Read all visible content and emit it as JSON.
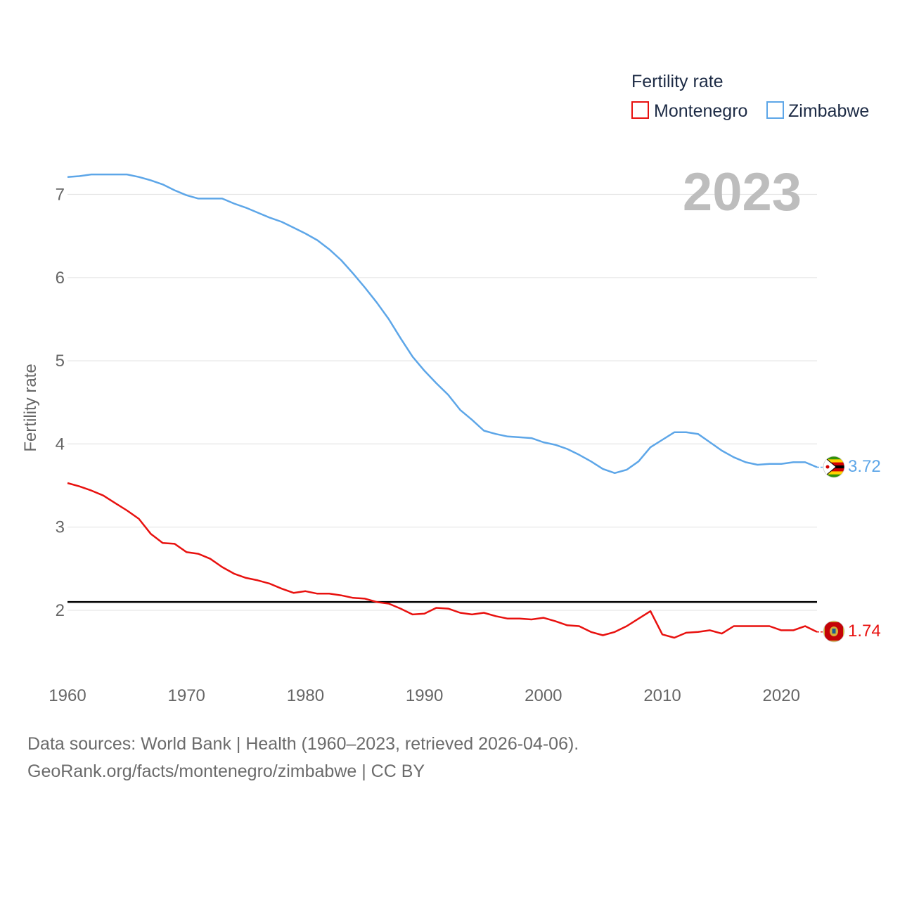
{
  "chart_data": {
    "type": "line",
    "xlabel": "",
    "ylabel": "Fertility rate",
    "xlim": [
      1960,
      2023
    ],
    "ylim": [
      1.3,
      7.4
    ],
    "x_ticks": [
      1960,
      1970,
      1980,
      1990,
      2000,
      2010,
      2020
    ],
    "y_ticks": [
      2,
      3,
      4,
      5,
      6,
      7
    ],
    "grid": true,
    "year_label": "2023",
    "legend": {
      "title": "Fertility rate",
      "position": "top-right"
    },
    "reference_line": {
      "y": 2.1,
      "color": "#000000"
    },
    "x": [
      1960,
      1961,
      1962,
      1963,
      1964,
      1965,
      1966,
      1967,
      1968,
      1969,
      1970,
      1971,
      1972,
      1973,
      1974,
      1975,
      1976,
      1977,
      1978,
      1979,
      1980,
      1981,
      1982,
      1983,
      1984,
      1985,
      1986,
      1987,
      1988,
      1989,
      1990,
      1991,
      1992,
      1993,
      1994,
      1995,
      1996,
      1997,
      1998,
      1999,
      2000,
      2001,
      2002,
      2003,
      2004,
      2005,
      2006,
      2007,
      2008,
      2009,
      2010,
      2011,
      2012,
      2013,
      2014,
      2015,
      2016,
      2017,
      2018,
      2019,
      2020,
      2021,
      2022,
      2023
    ],
    "series": [
      {
        "name": "Montenegro",
        "color": "#e8110f",
        "end_label": "1.74",
        "flag": "montenegro-flag-icon",
        "values": [
          3.53,
          3.49,
          3.44,
          3.38,
          3.29,
          3.2,
          3.1,
          2.92,
          2.81,
          2.8,
          2.7,
          2.68,
          2.62,
          2.52,
          2.44,
          2.39,
          2.36,
          2.32,
          2.26,
          2.21,
          2.23,
          2.2,
          2.2,
          2.18,
          2.15,
          2.14,
          2.1,
          2.08,
          2.02,
          1.95,
          1.96,
          2.03,
          2.02,
          1.97,
          1.95,
          1.97,
          1.93,
          1.9,
          1.9,
          1.89,
          1.91,
          1.87,
          1.82,
          1.81,
          1.74,
          1.7,
          1.74,
          1.81,
          1.9,
          1.99,
          1.71,
          1.67,
          1.73,
          1.74,
          1.76,
          1.72,
          1.81,
          1.81,
          1.81,
          1.81,
          1.76,
          1.76,
          1.81,
          1.74
        ]
      },
      {
        "name": "Zimbabwe",
        "color": "#5da6e8",
        "end_label": "3.72",
        "flag": "zimbabwe-flag-icon",
        "values": [
          7.21,
          7.22,
          7.24,
          7.24,
          7.24,
          7.24,
          7.21,
          7.17,
          7.12,
          7.05,
          6.99,
          6.95,
          6.95,
          6.95,
          6.89,
          6.84,
          6.78,
          6.72,
          6.67,
          6.6,
          6.53,
          6.45,
          6.34,
          6.21,
          6.05,
          5.88,
          5.7,
          5.5,
          5.27,
          5.05,
          4.88,
          4.73,
          4.59,
          4.41,
          4.29,
          4.16,
          4.12,
          4.09,
          4.08,
          4.07,
          4.02,
          3.99,
          3.94,
          3.87,
          3.79,
          3.7,
          3.65,
          3.69,
          3.79,
          3.96,
          4.05,
          4.14,
          4.14,
          4.12,
          4.02,
          3.92,
          3.84,
          3.78,
          3.75,
          3.76,
          3.76,
          3.78,
          3.78,
          3.72
        ]
      }
    ]
  },
  "footer": {
    "line1": "Data sources: World Bank | Health (1960–2023, retrieved 2026-04-06).",
    "line2": "GeoRank.org/facts/montenegro/zimbabwe | CC BY"
  }
}
